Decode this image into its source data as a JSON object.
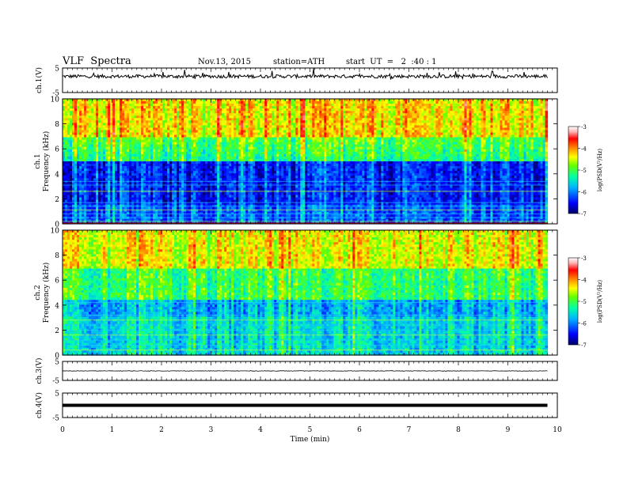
{
  "header": {
    "title": "VLF  Spectra",
    "date": "Nov.13, 2015",
    "station": "station=ATH",
    "start": "start  UT  =   2  :40 : 1"
  },
  "chart_data": {
    "type": "heatmap",
    "x": {
      "label": "Time  (min)",
      "range": [
        0,
        10
      ],
      "ticks": [
        "0",
        "1",
        "2",
        "3",
        "4",
        "5",
        "6",
        "7",
        "8",
        "9",
        "10"
      ]
    },
    "panels": [
      {
        "id": "ch1-wave",
        "type": "line",
        "ylabel": "ch.1(V)",
        "yticks": [
          "5",
          "-5"
        ],
        "ylim": [
          -5,
          5
        ]
      },
      {
        "id": "ch1-spec",
        "type": "heatmap",
        "ylabel_top": "ch.1",
        "ylabel": "Frequency  (kHz)",
        "yticks": [
          "0",
          "2",
          "4",
          "6",
          "8",
          "10"
        ],
        "ylim": [
          0,
          10
        ],
        "data_end_min": 9.8
      },
      {
        "id": "ch2-spec",
        "type": "heatmap",
        "ylabel_top": "ch.2",
        "ylabel": "Frequency  (kHz)",
        "yticks": [
          "0",
          "2",
          "4",
          "6",
          "8",
          "10"
        ],
        "ylim": [
          0,
          10
        ],
        "data_end_min": 9.8
      },
      {
        "id": "ch3-wave",
        "type": "line",
        "ylabel": "ch.3(V)",
        "yticks": [
          "5",
          "-5"
        ],
        "ylim": [
          -5,
          5
        ]
      },
      {
        "id": "ch4-wave",
        "type": "line",
        "ylabel": "ch.4(V)",
        "yticks": [
          "5",
          "-5"
        ],
        "ylim": [
          -5,
          5
        ]
      }
    ],
    "colorbar": {
      "label": "log(PSD(V²/Hz)",
      "range": [
        -7,
        -3
      ],
      "ticks": [
        "-3",
        "-4",
        "-5",
        "-6",
        "-7"
      ],
      "colors": [
        "#000066",
        "#0000ff",
        "#00b4ff",
        "#00ffaa",
        "#64ff00",
        "#ffff00",
        "#ff8c00",
        "#ff0000",
        "#ffb4b4",
        "#ffffff"
      ]
    }
  }
}
